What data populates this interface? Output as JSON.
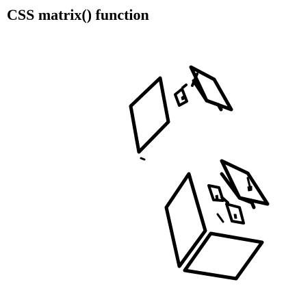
{
  "page": {
    "title": "CSS matrix() function"
  },
  "illustration": {
    "subject": "graduate-laptop-icon",
    "stroke_color": "#000000",
    "copies": 2
  }
}
